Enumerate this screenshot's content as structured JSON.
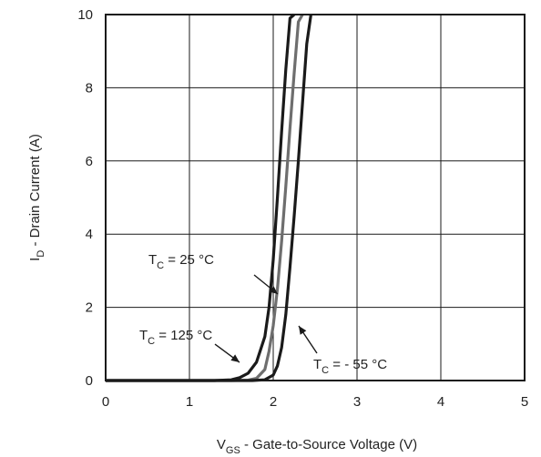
{
  "chart_data": {
    "type": "line",
    "title": "",
    "xlabel": {
      "main": "V",
      "sub": "GS",
      "rest": " - Gate-to-Source Voltage (V)"
    },
    "ylabel": {
      "main": "I",
      "sub": "D",
      "rest": " - Drain Current (A)"
    },
    "xlim": [
      0,
      5
    ],
    "ylim": [
      0,
      10
    ],
    "xticks": [
      "0",
      "1",
      "2",
      "3",
      "4",
      "5"
    ],
    "yticks": [
      "0",
      "2",
      "4",
      "6",
      "8",
      "10"
    ],
    "grid": true,
    "series": [
      {
        "name": "TC = 125 °C",
        "color": "#1a1a1a",
        "x": [
          0.0,
          1.3,
          1.5,
          1.6,
          1.7,
          1.8,
          1.9,
          1.95,
          2.0,
          2.05,
          2.1,
          2.15,
          2.2,
          2.25
        ],
        "y": [
          0.0,
          0.0,
          0.02,
          0.08,
          0.2,
          0.5,
          1.2,
          2.0,
          3.3,
          5.0,
          6.8,
          8.5,
          9.9,
          10.0
        ]
      },
      {
        "name": "TC = 25 °C",
        "color": "#6e6e6e",
        "x": [
          0.0,
          1.5,
          1.7,
          1.8,
          1.9,
          1.95,
          2.0,
          2.05,
          2.1,
          2.15,
          2.2,
          2.25,
          2.3,
          2.35
        ],
        "y": [
          0.0,
          0.0,
          0.01,
          0.06,
          0.3,
          0.8,
          1.5,
          2.5,
          3.8,
          5.3,
          6.9,
          8.4,
          9.8,
          10.0
        ]
      },
      {
        "name": "TC = - 55 °C",
        "color": "#1a1a1a",
        "x": [
          0.0,
          1.75,
          1.9,
          2.0,
          2.05,
          2.1,
          2.15,
          2.2,
          2.25,
          2.3,
          2.35,
          2.4,
          2.45
        ],
        "y": [
          0.0,
          0.0,
          0.02,
          0.15,
          0.4,
          0.9,
          1.8,
          3.1,
          4.5,
          6.0,
          7.6,
          9.2,
          10.0
        ]
      }
    ],
    "annotations": [
      {
        "main": "T",
        "sub": "C",
        "rest": " = 25 °C"
      },
      {
        "main": "T",
        "sub": "C",
        "rest": " = 125 °C"
      },
      {
        "main": "T",
        "sub": "C",
        "rest": " = - 55 °C"
      }
    ]
  }
}
